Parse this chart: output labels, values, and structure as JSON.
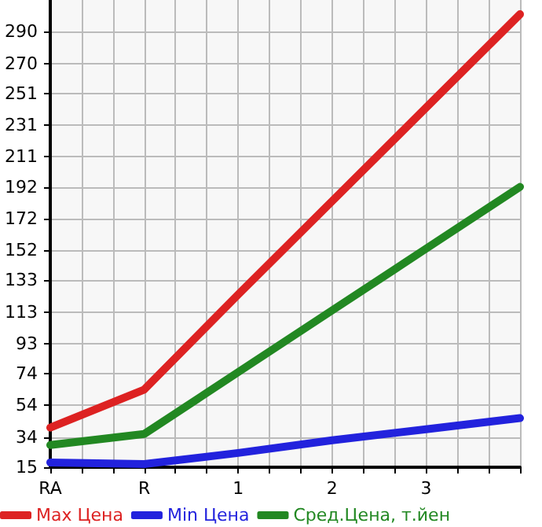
{
  "chart_data": {
    "type": "line",
    "categories": [
      "RA",
      "R",
      "1",
      "2",
      "3",
      null
    ],
    "series": [
      {
        "name": "Max Цена",
        "color": "#dd2222",
        "values": [
          40,
          64,
          124,
          183,
          242,
          301
        ]
      },
      {
        "name": "Min Цена",
        "color": "#2222dd",
        "values": [
          18,
          17,
          24,
          32,
          39,
          46
        ]
      },
      {
        "name": "Сред.Цена, т.йен",
        "color": "#228822",
        "values": [
          29,
          36,
          75,
          114,
          153,
          192
        ]
      }
    ],
    "ylim": [
      15,
      310
    ],
    "yticks": [
      15,
      34,
      54,
      74,
      93,
      113,
      133,
      152,
      172,
      192,
      211,
      231,
      251,
      270,
      290
    ],
    "grid": true,
    "legend": "bottom",
    "marker": "none",
    "line_style": "solid"
  }
}
